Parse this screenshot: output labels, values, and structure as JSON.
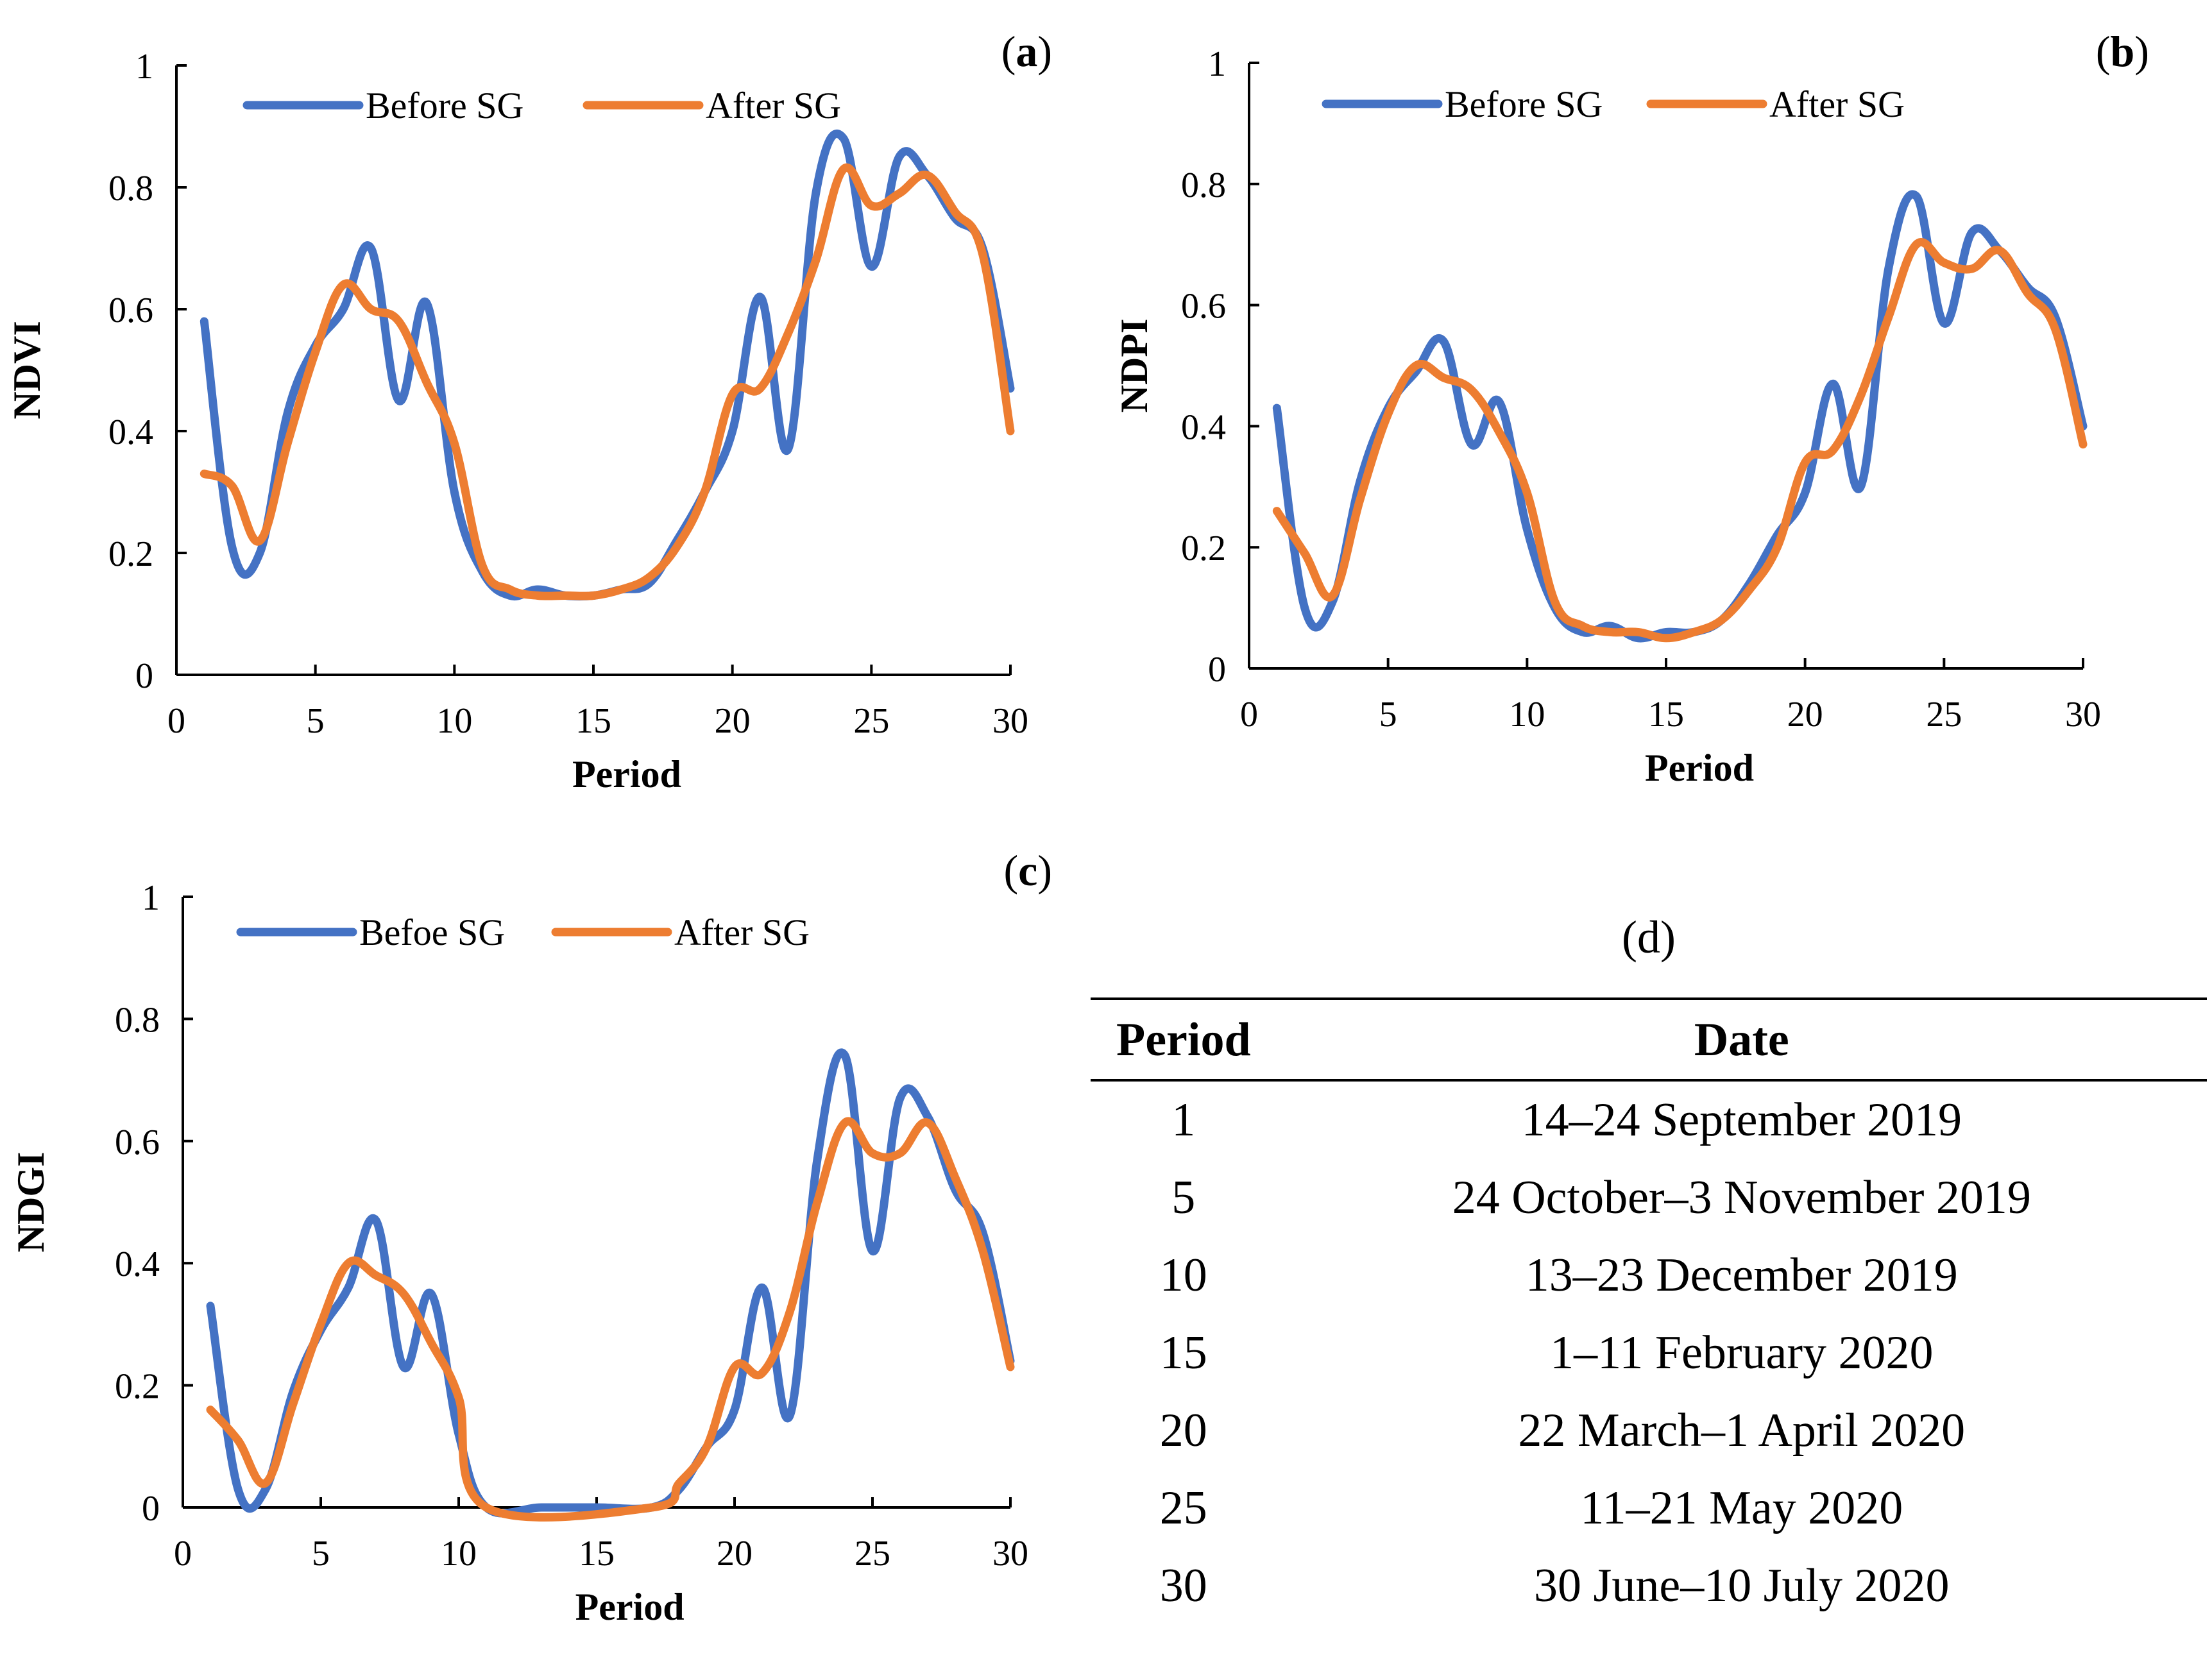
{
  "colors": {
    "before": "#4472C4",
    "after": "#ED7D31",
    "axis": "#000000"
  },
  "chart_data": [
    {
      "type": "line",
      "panel_label": "a",
      "xlabel": "Period",
      "ylabel": "NDVI",
      "xlim": [
        0,
        30
      ],
      "ylim": [
        0,
        1
      ],
      "xticks": [
        0,
        5,
        10,
        15,
        20,
        25,
        30
      ],
      "yticks": [
        0,
        0.2,
        0.4,
        0.6,
        0.8,
        1
      ],
      "legend": "top",
      "series": [
        {
          "name": "Before SG",
          "x": [
            1,
            2,
            3,
            4,
            5,
            6,
            7,
            8,
            9,
            10,
            11,
            12,
            13,
            14,
            15,
            16,
            17,
            18,
            19,
            20,
            21,
            22,
            23,
            24,
            25,
            26,
            27,
            28,
            29,
            30
          ],
          "values": [
            0.58,
            0.21,
            0.2,
            0.43,
            0.54,
            0.6,
            0.7,
            0.45,
            0.61,
            0.3,
            0.17,
            0.13,
            0.14,
            0.13,
            0.13,
            0.14,
            0.15,
            0.22,
            0.3,
            0.4,
            0.62,
            0.37,
            0.79,
            0.88,
            0.67,
            0.85,
            0.82,
            0.75,
            0.7,
            0.47
          ]
        },
        {
          "name": "After SG",
          "x": [
            1,
            2,
            3,
            4,
            5,
            6,
            7,
            8,
            9,
            10,
            11,
            12,
            13,
            14,
            15,
            16,
            17,
            18,
            19,
            20,
            21,
            22,
            23,
            24,
            25,
            26,
            27,
            28,
            29,
            30
          ],
          "values": [
            0.33,
            0.31,
            0.22,
            0.38,
            0.53,
            0.64,
            0.6,
            0.58,
            0.48,
            0.38,
            0.18,
            0.14,
            0.13,
            0.13,
            0.13,
            0.14,
            0.16,
            0.21,
            0.3,
            0.46,
            0.47,
            0.56,
            0.68,
            0.83,
            0.77,
            0.79,
            0.82,
            0.76,
            0.69,
            0.4
          ]
        }
      ]
    },
    {
      "type": "line",
      "panel_label": "b",
      "xlabel": "Period",
      "ylabel": "NDPI",
      "xlim": [
        0,
        30
      ],
      "ylim": [
        0,
        1
      ],
      "xticks": [
        0,
        5,
        10,
        15,
        20,
        25,
        30
      ],
      "yticks": [
        0,
        0.2,
        0.4,
        0.6,
        0.8,
        1
      ],
      "legend": "top",
      "series": [
        {
          "name": "Before SG",
          "x": [
            1,
            2,
            3,
            4,
            5,
            6,
            7,
            8,
            9,
            10,
            11,
            12,
            13,
            14,
            15,
            16,
            17,
            18,
            19,
            20,
            21,
            22,
            23,
            24,
            25,
            26,
            27,
            28,
            29,
            30
          ],
          "values": [
            0.43,
            0.1,
            0.11,
            0.31,
            0.43,
            0.49,
            0.54,
            0.37,
            0.44,
            0.23,
            0.1,
            0.06,
            0.07,
            0.05,
            0.06,
            0.06,
            0.08,
            0.14,
            0.22,
            0.29,
            0.47,
            0.3,
            0.66,
            0.78,
            0.57,
            0.72,
            0.69,
            0.63,
            0.58,
            0.4
          ]
        },
        {
          "name": "After SG",
          "x": [
            1,
            2,
            3,
            4,
            5,
            6,
            7,
            8,
            9,
            10,
            11,
            12,
            13,
            14,
            15,
            16,
            17,
            18,
            19,
            20,
            21,
            22,
            23,
            24,
            25,
            26,
            27,
            28,
            29,
            30
          ],
          "values": [
            0.26,
            0.19,
            0.12,
            0.28,
            0.42,
            0.5,
            0.48,
            0.46,
            0.39,
            0.29,
            0.11,
            0.07,
            0.06,
            0.06,
            0.05,
            0.06,
            0.08,
            0.13,
            0.2,
            0.34,
            0.36,
            0.45,
            0.58,
            0.7,
            0.67,
            0.66,
            0.69,
            0.62,
            0.56,
            0.37
          ]
        }
      ]
    },
    {
      "type": "line",
      "panel_label": "c",
      "xlabel": "Period",
      "ylabel": "NDGI",
      "xlim": [
        0,
        30
      ],
      "ylim": [
        0,
        1
      ],
      "xticks": [
        0,
        5,
        10,
        15,
        20,
        25,
        30
      ],
      "yticks": [
        0,
        0.2,
        0.4,
        0.6,
        0.8,
        1
      ],
      "legend": "top",
      "series": [
        {
          "name": "Befoe SG",
          "x": [
            1,
            2,
            3,
            4,
            5,
            6,
            7,
            8,
            9,
            10,
            11,
            13,
            15,
            17,
            18,
            19,
            20,
            21,
            22,
            23,
            24,
            25,
            26,
            27,
            28,
            29,
            30
          ],
          "values": [
            0.33,
            0.03,
            0.03,
            0.19,
            0.29,
            0.36,
            0.47,
            0.23,
            0.35,
            0.12,
            0.0,
            0.0,
            0.0,
            0.0,
            0.03,
            0.1,
            0.16,
            0.36,
            0.15,
            0.57,
            0.74,
            0.42,
            0.67,
            0.64,
            0.52,
            0.45,
            0.24
          ]
        },
        {
          "name": "After SG",
          "x": [
            1,
            2,
            3,
            4,
            5,
            6,
            7,
            8,
            9,
            10,
            11,
            17,
            18,
            19,
            20,
            21,
            22,
            23,
            24,
            25,
            26,
            27,
            28,
            29,
            30
          ],
          "values": [
            0.16,
            0.11,
            0.04,
            0.17,
            0.3,
            0.4,
            0.38,
            0.35,
            0.27,
            0.18,
            0.0,
            0.0,
            0.04,
            0.1,
            0.23,
            0.22,
            0.32,
            0.5,
            0.63,
            0.58,
            0.58,
            0.63,
            0.54,
            0.42,
            0.23
          ]
        }
      ]
    },
    {
      "type": "table",
      "panel_label": "(d)",
      "columns": [
        "Period",
        "Date"
      ],
      "rows": [
        [
          "1",
          "14–24 September 2019"
        ],
        [
          "5",
          "24 October–3 November 2019"
        ],
        [
          "10",
          "13–23 December 2019"
        ],
        [
          "15",
          "1–11 February 2020"
        ],
        [
          "20",
          "22 March–1 April 2020"
        ],
        [
          "25",
          "11–21 May 2020"
        ],
        [
          "30",
          "30 June–10 July 2020"
        ]
      ]
    }
  ]
}
